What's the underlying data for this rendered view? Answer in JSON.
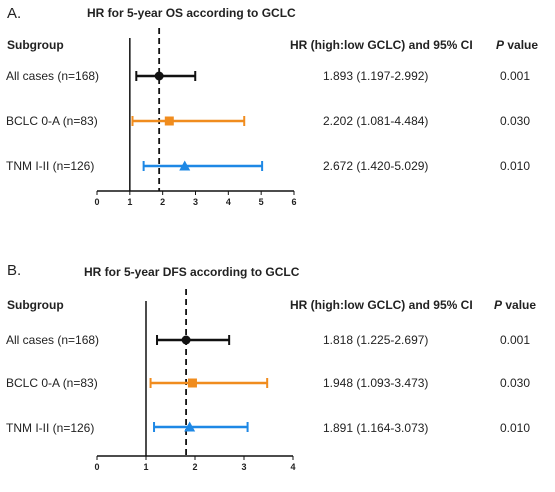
{
  "chart_data": [
    {
      "type": "forest",
      "panel_label": "A.",
      "title": "HR for 5-year OS according to GCLC",
      "header_subgroup": "Subgroup",
      "header_hr": "HR (high:low GCLC) and 95% CI",
      "header_p_italic": "P",
      "header_p_rest": " value",
      "xlim": [
        0,
        6
      ],
      "xticks": [
        "0",
        "1",
        "2",
        "3",
        "4",
        "5",
        "6"
      ],
      "reference_line": 1,
      "overall_line": 1.893,
      "rows": [
        {
          "label": "All cases (n=168)",
          "hr": 1.893,
          "lo": 1.197,
          "hi": 2.992,
          "hr_text": "1.893 (1.197-2.992)",
          "p": "0.001",
          "marker": "circle",
          "color": "#111111"
        },
        {
          "label": "BCLC 0-A (n=83)",
          "hr": 2.202,
          "lo": 1.081,
          "hi": 4.484,
          "hr_text": "2.202 (1.081-4.484)",
          "p": "0.030",
          "marker": "square",
          "color": "#f08c1e"
        },
        {
          "label": "TNM I-II (n=126)",
          "hr": 2.672,
          "lo": 1.42,
          "hi": 5.029,
          "hr_text": "2.672 (1.420-5.029)",
          "p": "0.010",
          "marker": "triangle",
          "color": "#1e88e5"
        }
      ]
    },
    {
      "type": "forest",
      "panel_label": "B.",
      "title": "HR for 5-year DFS according to GCLC",
      "header_subgroup": "Subgroup",
      "header_hr": "HR (high:low GCLC) and 95% CI",
      "header_p_italic": "P",
      "header_p_rest": " value",
      "xlim": [
        0,
        4
      ],
      "xticks": [
        "0",
        "1",
        "2",
        "3",
        "4"
      ],
      "reference_line": 1,
      "overall_line": 1.818,
      "rows": [
        {
          "label": "All cases (n=168)",
          "hr": 1.818,
          "lo": 1.225,
          "hi": 2.697,
          "hr_text": "1.818 (1.225-2.697)",
          "p": "0.001",
          "marker": "circle",
          "color": "#111111"
        },
        {
          "label": "BCLC 0-A (n=83)",
          "hr": 1.948,
          "lo": 1.093,
          "hi": 3.473,
          "hr_text": "1.948 (1.093-3.473)",
          "p": "0.030",
          "marker": "square",
          "color": "#f08c1e"
        },
        {
          "label": "TNM I-II (n=126)",
          "hr": 1.891,
          "lo": 1.164,
          "hi": 3.073,
          "hr_text": "1.891 (1.164-3.073)",
          "p": "0.010",
          "marker": "triangle",
          "color": "#1e88e5"
        }
      ]
    }
  ]
}
